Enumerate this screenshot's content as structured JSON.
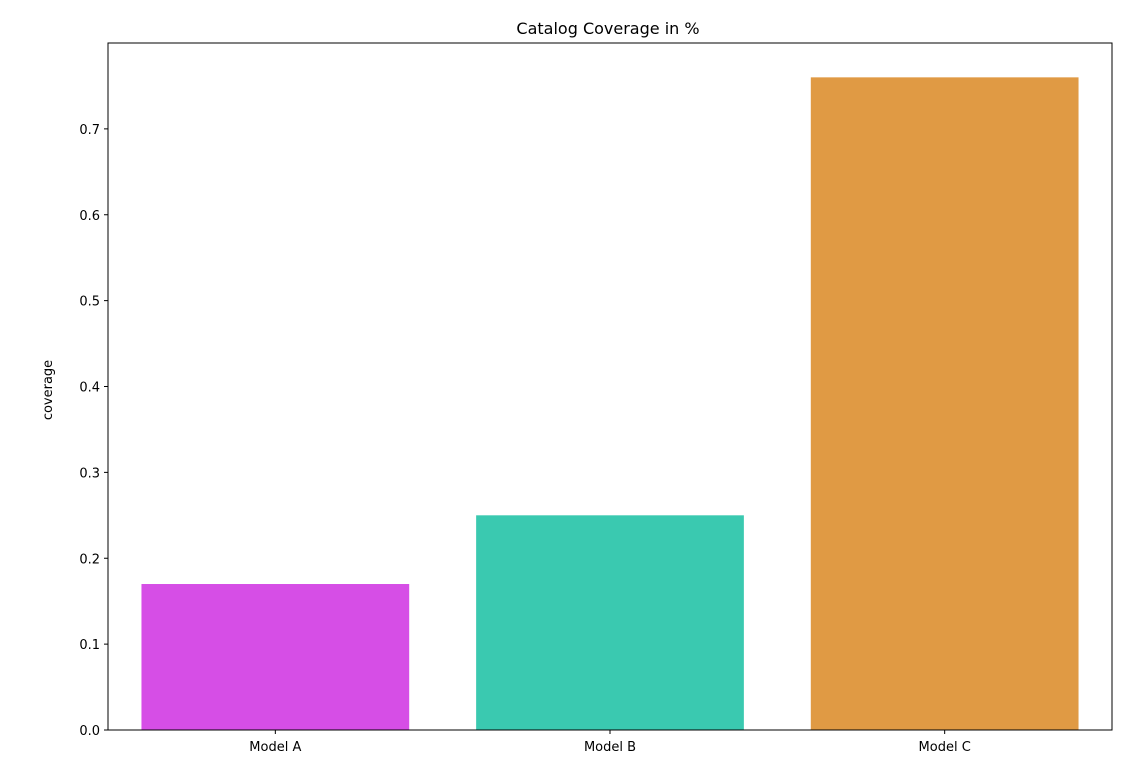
{
  "chart_data": {
    "type": "bar",
    "title": "Catalog Coverage in %",
    "xlabel": "",
    "ylabel": "coverage",
    "categories": [
      "Model A",
      "Model B",
      "Model C"
    ],
    "values": [
      0.17,
      0.25,
      0.76
    ],
    "colors": [
      "#d64ee6",
      "#3ac9b0",
      "#e09a44"
    ],
    "ylim": [
      0,
      0.8
    ],
    "yticks": [
      "0.0",
      "0.1",
      "0.2",
      "0.3",
      "0.4",
      "0.5",
      "0.6",
      "0.7"
    ],
    "grid": false,
    "legend": "none"
  }
}
